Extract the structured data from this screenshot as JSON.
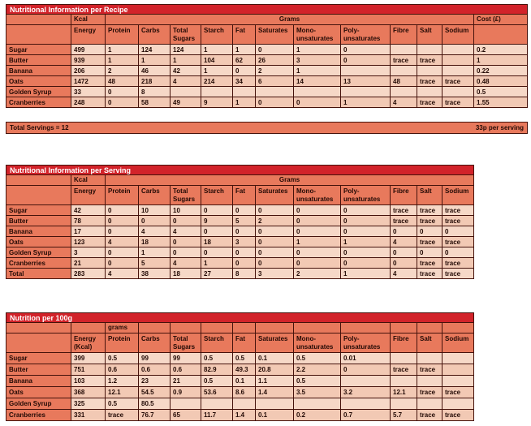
{
  "colors": {
    "title_bar_bg": "#d2232a",
    "title_text": "#ffffff",
    "header_bg": "#e8795c",
    "row_light": "#f6d8c7",
    "row_dark": "#f2c9b4",
    "border": "#45120b",
    "cell_text": "#230a05",
    "page_bg": "#ffffff"
  },
  "servings_bar": {
    "left_text": "Total Servings = 12",
    "right_text": "33p per serving"
  },
  "tables": [
    {
      "title": "Nutritional Information per Recipe",
      "unit_row": [
        {
          "label": "",
          "span": 1
        },
        {
          "label": "Kcal",
          "span": 1
        },
        {
          "label": "Grams",
          "span": 11
        },
        {
          "label": "Cost (£)",
          "span": 1
        }
      ],
      "columns": [
        "",
        "Energy",
        "Protein",
        "Carbs",
        "Total Sugars",
        "Starch",
        "Fat",
        "Saturates",
        "Mono-unsaturates",
        "Poly-unsaturates",
        "Fibre",
        "Salt",
        "Sodium",
        ""
      ],
      "rows": [
        [
          "Sugar",
          "499",
          "1",
          "124",
          "124",
          "1",
          "1",
          "0",
          "1",
          "0",
          "",
          "",
          "",
          "0.2"
        ],
        [
          "Butter",
          "939",
          "1",
          "1",
          "1",
          "104",
          "62",
          "26",
          "3",
          "0",
          "trace",
          "trace",
          "",
          "1"
        ],
        [
          "Banana",
          "206",
          "2",
          "46",
          "42",
          "1",
          "0",
          "2",
          "1",
          "",
          "",
          "",
          "",
          "0.22"
        ],
        [
          "Oats",
          "1472",
          "48",
          "218",
          "4",
          "214",
          "34",
          "6",
          "14",
          "13",
          "48",
          "trace",
          "trace",
          "0.48"
        ],
        [
          "Golden Syrup",
          "33",
          "0",
          "8",
          "",
          "",
          "",
          "",
          "",
          "",
          "",
          "",
          "",
          "0.5"
        ],
        [
          "Cranberries",
          "248",
          "0",
          "58",
          "49",
          "9",
          "1",
          "0",
          "0",
          "1",
          "4",
          "trace",
          "trace",
          "1.55"
        ]
      ]
    },
    {
      "title": "Nutritional Information per Serving",
      "unit_row": [
        {
          "label": "",
          "span": 1
        },
        {
          "label": "Kcal",
          "span": 1
        },
        {
          "label": "Grams",
          "span": 11
        }
      ],
      "columns": [
        "",
        "Energy",
        "Protein",
        "Carbs",
        "Total Sugars",
        "Starch",
        "Fat",
        "Saturates",
        "Mono-unsaturates",
        "Poly-unsaturates",
        "Fibre",
        "Salt",
        "Sodium"
      ],
      "rows": [
        [
          "Sugar",
          "42",
          "0",
          "10",
          "10",
          "0",
          "0",
          "0",
          "0",
          "0",
          "trace",
          "trace",
          "trace"
        ],
        [
          "Butter",
          "78",
          "0",
          "0",
          "0",
          "9",
          "5",
          "2",
          "0",
          "0",
          "trace",
          "trace",
          "trace"
        ],
        [
          "Banana",
          "17",
          "0",
          "4",
          "4",
          "0",
          "0",
          "0",
          "0",
          "0",
          "0",
          "0",
          "0"
        ],
        [
          "Oats",
          "123",
          "4",
          "18",
          "0",
          "18",
          "3",
          "0",
          "1",
          "1",
          "4",
          "trace",
          "trace"
        ],
        [
          "Golden Syrup",
          "3",
          "0",
          "1",
          "0",
          "0",
          "0",
          "0",
          "0",
          "0",
          "0",
          "0",
          "0"
        ],
        [
          "Cranberries",
          "21",
          "0",
          "5",
          "4",
          "1",
          "0",
          "0",
          "0",
          "0",
          "0",
          "trace",
          "trace"
        ],
        [
          "Total",
          "283",
          "4",
          "38",
          "18",
          "27",
          "8",
          "3",
          "2",
          "1",
          "4",
          "trace",
          "trace"
        ]
      ]
    },
    {
      "title": "Nutrition per 100g",
      "unit_row": [
        {
          "label": "",
          "span": 1
        },
        {
          "label": "",
          "span": 1
        },
        {
          "label": "grams",
          "span": 1
        },
        {
          "label": "",
          "span": 1
        },
        {
          "label": "",
          "span": 1
        },
        {
          "label": "",
          "span": 1
        },
        {
          "label": "",
          "span": 1
        },
        {
          "label": "",
          "span": 1
        },
        {
          "label": "",
          "span": 1
        },
        {
          "label": "",
          "span": 1
        },
        {
          "label": "",
          "span": 1
        },
        {
          "label": "",
          "span": 1
        },
        {
          "label": "",
          "span": 1
        }
      ],
      "columns": [
        "",
        "Energy (Kcal)",
        "Protein",
        "Carbs",
        "Total Sugars",
        "Starch",
        "Fat",
        "Saturates",
        "Mono-unsaturates",
        "Poly-unsaturates",
        "Fibre",
        "Salt",
        "Sodium"
      ],
      "rows": [
        [
          "Sugar",
          "399",
          "0.5",
          "99",
          "99",
          "0.5",
          "0.5",
          "0.1",
          "0.5",
          "0.01",
          "",
          "",
          ""
        ],
        [
          "Butter",
          "751",
          "0.6",
          "0.6",
          "0.6",
          "82.9",
          "49.3",
          "20.8",
          "2.2",
          "0",
          "trace",
          "trace",
          ""
        ],
        [
          "Banana",
          "103",
          "1.2",
          "23",
          "21",
          "0.5",
          "0.1",
          "1.1",
          "0.5",
          "",
          "",
          "",
          ""
        ],
        [
          "Oats",
          "368",
          "12.1",
          "54.5",
          "0.9",
          "53.6",
          "8.6",
          "1.4",
          "3.5",
          "3.2",
          "12.1",
          "trace",
          "trace"
        ],
        [
          "Golden Syrup",
          "325",
          "0.5",
          "80.5",
          "",
          "",
          "",
          "",
          "",
          "",
          "",
          "",
          ""
        ],
        [
          "Cranberries",
          "331",
          "trace",
          "76.7",
          "65",
          "11.7",
          "1.4",
          "0.1",
          "0.2",
          "0.7",
          "5.7",
          "trace",
          "trace"
        ]
      ]
    }
  ]
}
